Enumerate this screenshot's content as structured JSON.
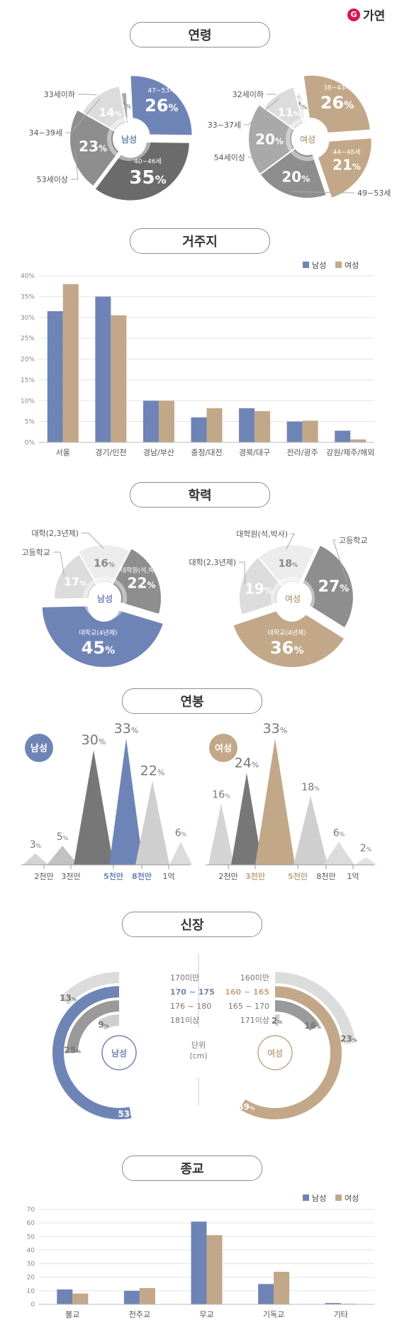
{
  "brand": {
    "name": "가연",
    "logo_glyph": "G"
  },
  "colors": {
    "male": "#6f84b6",
    "female": "#c2a888",
    "male_pie": [
      "#a9a9a9",
      "#6f84b6",
      "#6b6b6b",
      "#8e8e8e",
      "#dcdcdc"
    ],
    "female_pie": [
      "#ececec",
      "#c2a888",
      "#c2a888",
      "#8e8e8e",
      "#a9a9a9",
      "#dcdcdc"
    ]
  },
  "sections": {
    "age": {
      "title": "연령"
    },
    "residence": {
      "title": "거주지"
    },
    "education": {
      "title": "학력"
    },
    "salary": {
      "title": "연봉"
    },
    "height": {
      "title": "신장",
      "unit_label_1": "단위",
      "unit_label_2": "(cm)"
    },
    "religion": {
      "title": "종교"
    }
  },
  "legend": {
    "male": "남성",
    "female": "여성"
  },
  "chart_data": [
    {
      "id": "age_male",
      "type": "pie",
      "title": "연령",
      "center_label": "남성",
      "slices": [
        {
          "label": "33세이하",
          "value": 2
        },
        {
          "label": "47~53세",
          "value": 26
        },
        {
          "label": "40~46세",
          "value": 35
        },
        {
          "label": "53세이상",
          "value": 23
        },
        {
          "label": "34~39세",
          "value": 14
        }
      ]
    },
    {
      "id": "age_female",
      "type": "pie",
      "title": "연령",
      "center_label": "여성",
      "slices": [
        {
          "label": "32세이하",
          "value": 2
        },
        {
          "label": "38~43세",
          "value": 26
        },
        {
          "label": "44~48세",
          "value": 21
        },
        {
          "label": "49~53세",
          "value": 20
        },
        {
          "label": "54세이상",
          "value": 20
        },
        {
          "label": "33~37세",
          "value": 11
        }
      ]
    },
    {
      "id": "residence",
      "type": "bar",
      "title": "거주지",
      "categories": [
        "서울",
        "경기/인천",
        "경남/부산",
        "충청/대전",
        "경북/대구",
        "전라/광주",
        "강원/제주/해외"
      ],
      "series": [
        {
          "name": "남성",
          "values": [
            31.5,
            35,
            10,
            6,
            8.2,
            5,
            2.8
          ]
        },
        {
          "name": "여성",
          "values": [
            38,
            30.5,
            10,
            8.2,
            7.5,
            5.2,
            0.7
          ]
        }
      ],
      "ylim": [
        0,
        40
      ],
      "yticks": [
        "0%",
        "5%",
        "10%",
        "15%",
        "20%",
        "25%",
        "30%",
        "35%",
        "40%"
      ],
      "grid": true,
      "legend": "top-right"
    },
    {
      "id": "edu_male",
      "type": "pie",
      "title": "학력",
      "center_label": "남성",
      "slices": [
        {
          "label": "대학(2,3년제)",
          "value": 16
        },
        {
          "label": "대학원(석,박사)",
          "value": 22
        },
        {
          "label": "대학교(4년제)",
          "value": 45
        },
        {
          "label": "고등학교",
          "value": 17
        }
      ]
    },
    {
      "id": "edu_female",
      "type": "pie",
      "title": "학력",
      "center_label": "여성",
      "slices": [
        {
          "label": "대학원(석,박사)",
          "value": 18
        },
        {
          "label": "고등학교",
          "value": 27
        },
        {
          "label": "대학교(4년제)",
          "value": 36
        },
        {
          "label": "대학(2,3년제)",
          "value": 19
        }
      ]
    },
    {
      "id": "salary_male",
      "type": "area",
      "title": "연봉",
      "group_label": "남성",
      "x_labels": [
        "2천만",
        "3천만",
        "5천만",
        "8천만",
        "1억"
      ],
      "values": [
        3,
        5,
        30,
        33,
        22,
        6
      ],
      "highlight_index": 3
    },
    {
      "id": "salary_female",
      "type": "area",
      "title": "연봉",
      "group_label": "여성",
      "x_labels": [
        "2천만",
        "3천만",
        "5천만",
        "8천만",
        "1억"
      ],
      "values": [
        16,
        24,
        33,
        18,
        6,
        2
      ],
      "highlight_index": 2
    },
    {
      "id": "height_male",
      "type": "pie",
      "title": "신장",
      "center_label": "남성",
      "categories": [
        "170미만",
        "170 ~ 175",
        "176 ~ 180",
        "181이상"
      ],
      "values": [
        13,
        53,
        25,
        9
      ]
    },
    {
      "id": "height_female",
      "type": "pie",
      "title": "신장",
      "center_label": "여성",
      "categories": [
        "160미만",
        "160 ~ 165",
        "165 ~ 170",
        "171이상"
      ],
      "values": [
        23,
        59,
        16,
        2
      ]
    },
    {
      "id": "religion",
      "type": "bar",
      "title": "종교",
      "categories": [
        "불교",
        "천주교",
        "무교",
        "기독교",
        "기타"
      ],
      "series": [
        {
          "name": "남성",
          "values": [
            11,
            10,
            61,
            15,
            1
          ]
        },
        {
          "name": "여성",
          "values": [
            8,
            12,
            51,
            24,
            0.5
          ]
        }
      ],
      "ylim": [
        0,
        70
      ],
      "yticks": [
        "0",
        "10",
        "20",
        "30",
        "40",
        "50",
        "60",
        "70"
      ],
      "grid": true,
      "legend": "top-right"
    }
  ]
}
